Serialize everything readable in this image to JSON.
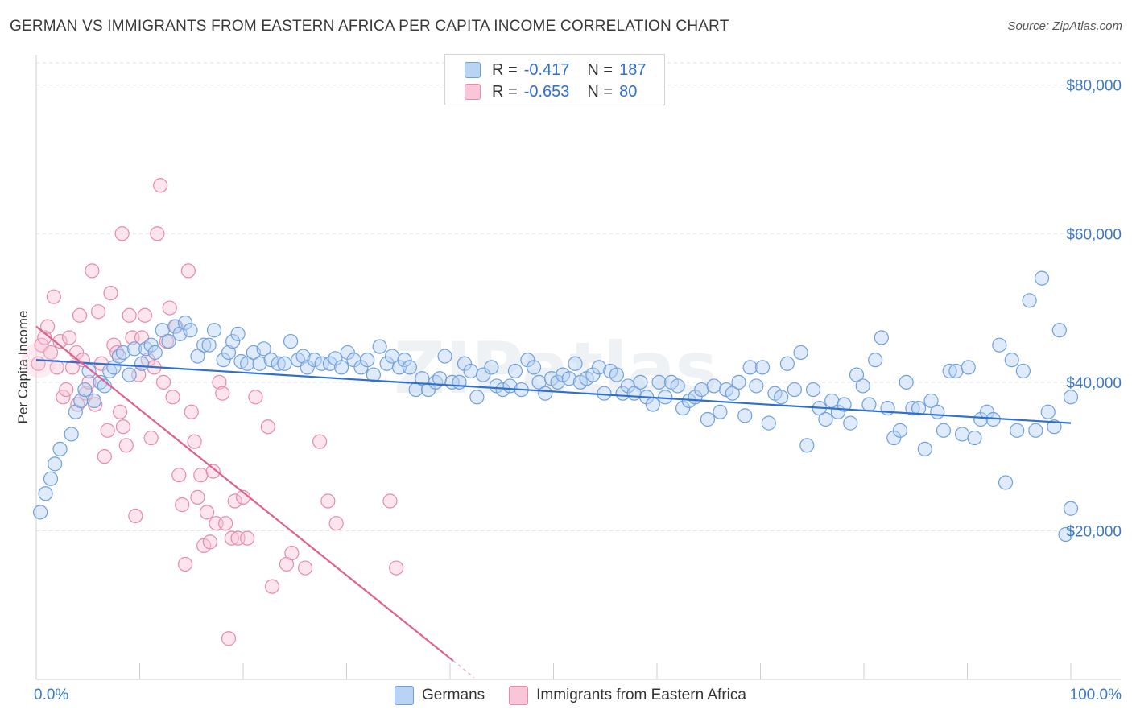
{
  "header": {
    "title": "GERMAN VS IMMIGRANTS FROM EASTERN AFRICA PER CAPITA INCOME CORRELATION CHART",
    "source": "Source: ZipAtlas.com"
  },
  "legend": {
    "germans": {
      "r_label": "R =",
      "r_value": "-0.417",
      "n_label": "N =",
      "n_value": "187"
    },
    "immigrants": {
      "r_label": "R =",
      "r_value": "-0.653",
      "n_label": "N =",
      "n_value": "80"
    }
  },
  "bottom_legend": {
    "germans": "Germans",
    "immigrants": "Immigrants from Eastern Africa"
  },
  "watermark": "ZIPatlas",
  "colors": {
    "blue": "#6fa0de",
    "blue_fill": "#b8d3f4",
    "blue_line": "#2f6fd0",
    "pink": "#e88aa8",
    "pink_fill": "#f8c6d6",
    "pink_line": "#e06090",
    "tick_text": "#3b78c8"
  },
  "chart_data": {
    "type": "scatter",
    "ylabel": "Per Capita Income",
    "xlim": [
      0,
      100
    ],
    "ylim": [
      0,
      83000
    ],
    "x_tick_labels": [
      "0.0%",
      "100.0%"
    ],
    "y_ticks": [
      20000,
      40000,
      60000,
      80000
    ],
    "y_tick_labels": [
      "$20,000",
      "$40,000",
      "$60,000",
      "$80,000"
    ],
    "grid": "horizontal dashed",
    "series": [
      {
        "name": "Germans",
        "trend": {
          "x": [
            0,
            100
          ],
          "y": [
            43000,
            34500
          ]
        },
        "points": [
          [
            0.4,
            22500
          ],
          [
            0.9,
            25000
          ],
          [
            1.4,
            27000
          ],
          [
            1.8,
            29000
          ],
          [
            2.3,
            31000
          ],
          [
            3.4,
            33000
          ],
          [
            3.8,
            36000
          ],
          [
            4.3,
            37500
          ],
          [
            4.7,
            39000
          ],
          [
            5.1,
            41500
          ],
          [
            5.6,
            37500
          ],
          [
            6.2,
            40000
          ],
          [
            6.6,
            39500
          ],
          [
            7.1,
            41500
          ],
          [
            7.5,
            42000
          ],
          [
            8.0,
            43500
          ],
          [
            8.4,
            44000
          ],
          [
            9.0,
            41000
          ],
          [
            9.5,
            44500
          ],
          [
            10.2,
            42500
          ],
          [
            10.6,
            44500
          ],
          [
            11.1,
            45000
          ],
          [
            11.5,
            44000
          ],
          [
            12.2,
            47000
          ],
          [
            12.8,
            45500
          ],
          [
            13.4,
            47500
          ],
          [
            13.9,
            46500
          ],
          [
            14.4,
            48000
          ],
          [
            14.9,
            47000
          ],
          [
            15.6,
            43500
          ],
          [
            16.2,
            45000
          ],
          [
            16.7,
            45000
          ],
          [
            17.2,
            47000
          ],
          [
            18.1,
            43000
          ],
          [
            18.6,
            44000
          ],
          [
            19.0,
            45500
          ],
          [
            19.5,
            46500
          ],
          [
            19.8,
            42800
          ],
          [
            20.4,
            42500
          ],
          [
            21.0,
            44000
          ],
          [
            21.6,
            42500
          ],
          [
            22.0,
            44500
          ],
          [
            22.7,
            43000
          ],
          [
            23.4,
            42500
          ],
          [
            24.0,
            42500
          ],
          [
            24.6,
            45500
          ],
          [
            25.3,
            43000
          ],
          [
            25.8,
            43500
          ],
          [
            26.2,
            42000
          ],
          [
            26.9,
            43000
          ],
          [
            27.6,
            42500
          ],
          [
            28.4,
            42500
          ],
          [
            28.9,
            43200
          ],
          [
            29.5,
            42000
          ],
          [
            30.1,
            44000
          ],
          [
            30.7,
            43000
          ],
          [
            31.4,
            42000
          ],
          [
            32.0,
            43000
          ],
          [
            32.6,
            41000
          ],
          [
            33.2,
            44800
          ],
          [
            33.9,
            42500
          ],
          [
            34.4,
            43500
          ],
          [
            35.1,
            42000
          ],
          [
            35.6,
            43000
          ],
          [
            36.1,
            42000
          ],
          [
            36.7,
            39000
          ],
          [
            37.3,
            40500
          ],
          [
            37.9,
            39000
          ],
          [
            38.6,
            40000
          ],
          [
            39.0,
            40500
          ],
          [
            39.5,
            43500
          ],
          [
            40.2,
            40000
          ],
          [
            40.9,
            40000
          ],
          [
            41.4,
            42500
          ],
          [
            42.0,
            41500
          ],
          [
            42.6,
            38000
          ],
          [
            43.2,
            41000
          ],
          [
            44.0,
            42000
          ],
          [
            44.5,
            39500
          ],
          [
            45.1,
            39000
          ],
          [
            45.8,
            39500
          ],
          [
            46.3,
            41500
          ],
          [
            46.9,
            39000
          ],
          [
            47.5,
            43000
          ],
          [
            48.1,
            42000
          ],
          [
            48.6,
            40000
          ],
          [
            49.2,
            38500
          ],
          [
            49.8,
            40500
          ],
          [
            50.4,
            40000
          ],
          [
            50.9,
            41000
          ],
          [
            51.5,
            40500
          ],
          [
            52.1,
            42500
          ],
          [
            52.6,
            40000
          ],
          [
            53.2,
            40500
          ],
          [
            53.8,
            41000
          ],
          [
            54.4,
            42000
          ],
          [
            54.9,
            38500
          ],
          [
            55.5,
            41500
          ],
          [
            56.1,
            41000
          ],
          [
            56.7,
            38500
          ],
          [
            57.2,
            39500
          ],
          [
            57.8,
            38500
          ],
          [
            58.4,
            40000
          ],
          [
            59.0,
            38000
          ],
          [
            59.6,
            37000
          ],
          [
            60.2,
            40000
          ],
          [
            60.8,
            38000
          ],
          [
            61.4,
            40000
          ],
          [
            62.0,
            39500
          ],
          [
            62.5,
            36500
          ],
          [
            63.1,
            37500
          ],
          [
            63.7,
            38000
          ],
          [
            64.3,
            39000
          ],
          [
            64.9,
            35000
          ],
          [
            65.5,
            39500
          ],
          [
            66.1,
            36000
          ],
          [
            66.7,
            39000
          ],
          [
            67.3,
            38500
          ],
          [
            67.9,
            40000
          ],
          [
            68.5,
            35500
          ],
          [
            69.0,
            42000
          ],
          [
            69.6,
            39500
          ],
          [
            70.2,
            42000
          ],
          [
            70.8,
            34500
          ],
          [
            71.4,
            38500
          ],
          [
            72.0,
            38000
          ],
          [
            72.6,
            42500
          ],
          [
            73.3,
            39000
          ],
          [
            73.9,
            44000
          ],
          [
            74.5,
            31500
          ],
          [
            75.1,
            39000
          ],
          [
            75.7,
            36500
          ],
          [
            76.3,
            35000
          ],
          [
            76.9,
            37500
          ],
          [
            77.5,
            36000
          ],
          [
            78.1,
            37000
          ],
          [
            78.7,
            34500
          ],
          [
            79.3,
            41000
          ],
          [
            79.9,
            39500
          ],
          [
            80.5,
            37000
          ],
          [
            81.1,
            43000
          ],
          [
            81.7,
            46000
          ],
          [
            82.3,
            36500
          ],
          [
            82.9,
            32500
          ],
          [
            83.5,
            33500
          ],
          [
            84.1,
            40000
          ],
          [
            84.7,
            36500
          ],
          [
            85.3,
            36500
          ],
          [
            85.9,
            31000
          ],
          [
            86.5,
            37500
          ],
          [
            87.1,
            36000
          ],
          [
            87.7,
            33500
          ],
          [
            88.3,
            41500
          ],
          [
            88.9,
            41500
          ],
          [
            89.5,
            33000
          ],
          [
            90.1,
            42000
          ],
          [
            90.7,
            32500
          ],
          [
            91.3,
            35000
          ],
          [
            91.9,
            36000
          ],
          [
            92.5,
            35000
          ],
          [
            93.1,
            45000
          ],
          [
            93.7,
            26500
          ],
          [
            94.3,
            43000
          ],
          [
            94.8,
            33500
          ],
          [
            95.4,
            41500
          ],
          [
            96.0,
            51000
          ],
          [
            96.6,
            33500
          ],
          [
            97.2,
            54000
          ],
          [
            97.8,
            36000
          ],
          [
            98.4,
            34000
          ],
          [
            98.9,
            47000
          ],
          [
            99.5,
            19500
          ],
          [
            100.0,
            23000
          ],
          [
            100.0,
            38000
          ]
        ]
      },
      {
        "name": "Immigrants from Eastern Africa",
        "trend": {
          "x": [
            0,
            40.3
          ],
          "y": [
            47500,
            2500
          ]
        },
        "points": [
          [
            0.2,
            42500
          ],
          [
            0.5,
            45000
          ],
          [
            0.8,
            46000
          ],
          [
            1.1,
            47500
          ],
          [
            1.4,
            44000
          ],
          [
            1.7,
            51500
          ],
          [
            2.0,
            42000
          ],
          [
            2.3,
            45500
          ],
          [
            2.6,
            38000
          ],
          [
            2.9,
            39000
          ],
          [
            3.2,
            46000
          ],
          [
            3.5,
            42000
          ],
          [
            3.9,
            44000
          ],
          [
            4.2,
            49000
          ],
          [
            4.5,
            43000
          ],
          [
            4.8,
            38500
          ],
          [
            5.1,
            40000
          ],
          [
            5.4,
            55000
          ],
          [
            5.7,
            37000
          ],
          [
            6.0,
            49500
          ],
          [
            6.3,
            42500
          ],
          [
            6.6,
            30000
          ],
          [
            6.9,
            33500
          ],
          [
            7.2,
            52000
          ],
          [
            7.5,
            45000
          ],
          [
            7.8,
            44000
          ],
          [
            8.1,
            36000
          ],
          [
            8.4,
            34000
          ],
          [
            8.7,
            31500
          ],
          [
            9.0,
            49000
          ],
          [
            9.3,
            46000
          ],
          [
            9.6,
            22000
          ],
          [
            9.9,
            41000
          ],
          [
            10.2,
            46000
          ],
          [
            10.5,
            49000
          ],
          [
            10.8,
            43000
          ],
          [
            11.1,
            32500
          ],
          [
            11.4,
            42000
          ],
          [
            11.7,
            60000
          ],
          [
            12.0,
            66500
          ],
          [
            12.3,
            40000
          ],
          [
            12.6,
            45500
          ],
          [
            12.9,
            50000
          ],
          [
            13.2,
            38000
          ],
          [
            13.5,
            47500
          ],
          [
            13.8,
            27500
          ],
          [
            14.1,
            23500
          ],
          [
            14.4,
            15500
          ],
          [
            14.7,
            55000
          ],
          [
            15.0,
            36000
          ],
          [
            15.3,
            32000
          ],
          [
            15.6,
            24500
          ],
          [
            15.9,
            27500
          ],
          [
            16.2,
            18000
          ],
          [
            16.5,
            22500
          ],
          [
            16.8,
            18500
          ],
          [
            17.1,
            28000
          ],
          [
            17.4,
            21000
          ],
          [
            17.7,
            40000
          ],
          [
            18.0,
            38500
          ],
          [
            18.3,
            21000
          ],
          [
            18.6,
            5500
          ],
          [
            18.9,
            19000
          ],
          [
            19.2,
            24000
          ],
          [
            19.5,
            19000
          ],
          [
            20.0,
            24500
          ],
          [
            20.4,
            19000
          ],
          [
            21.2,
            38000
          ],
          [
            22.4,
            34000
          ],
          [
            22.8,
            12500
          ],
          [
            24.2,
            15500
          ],
          [
            24.7,
            17000
          ],
          [
            26.0,
            15000
          ],
          [
            27.4,
            32000
          ],
          [
            28.2,
            24000
          ],
          [
            29.0,
            21000
          ],
          [
            34.2,
            24000
          ],
          [
            34.8,
            15000
          ],
          [
            8.3,
            60000
          ],
          [
            4.0,
            37000
          ]
        ]
      }
    ]
  }
}
